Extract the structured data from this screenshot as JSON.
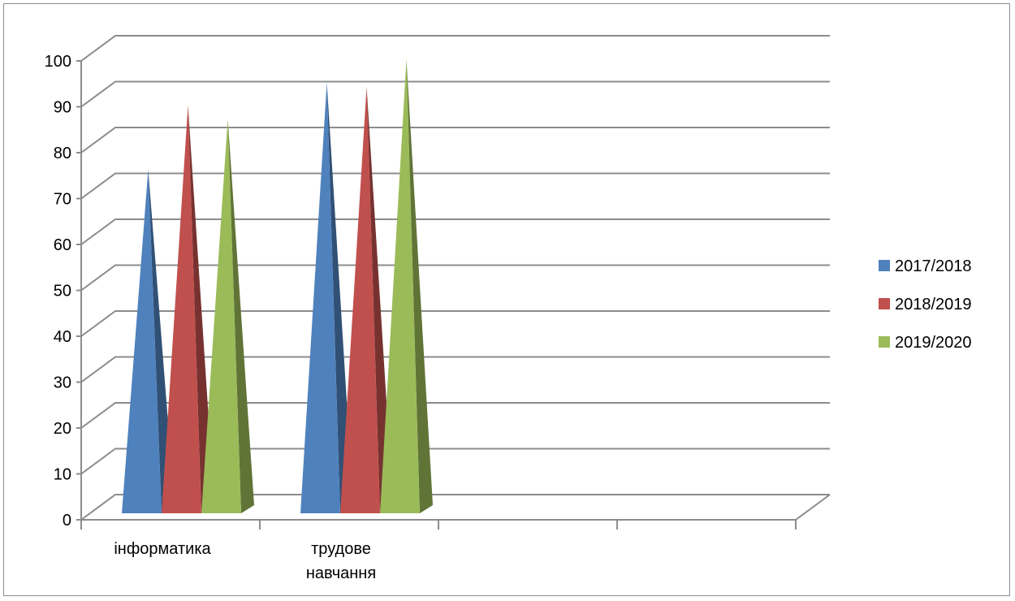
{
  "chart_data": {
    "type": "bar",
    "bar_shape": "3d-pyramid",
    "categories": [
      "інформатика",
      "трудове навчання",
      "",
      ""
    ],
    "category_label_lines": [
      [
        "інформатика"
      ],
      [
        "трудове",
        "навчання"
      ],
      [],
      []
    ],
    "series": [
      {
        "name": "2017/2018",
        "color": "#4f81bd",
        "values": [
          76,
          95,
          null,
          null
        ]
      },
      {
        "name": "2018/2019",
        "color": "#c0504d",
        "values": [
          90,
          94,
          null,
          null
        ]
      },
      {
        "name": "2019/2020",
        "color": "#9bbb59",
        "values": [
          87,
          100,
          null,
          null
        ]
      }
    ],
    "y_ticks": [
      "0",
      "10",
      "20",
      "30",
      "40",
      "50",
      "60",
      "70",
      "80",
      "90",
      "100"
    ],
    "ylim": [
      0,
      100
    ],
    "grid": true,
    "legend": "right",
    "title": "",
    "xlabel": "",
    "ylabel": ""
  }
}
